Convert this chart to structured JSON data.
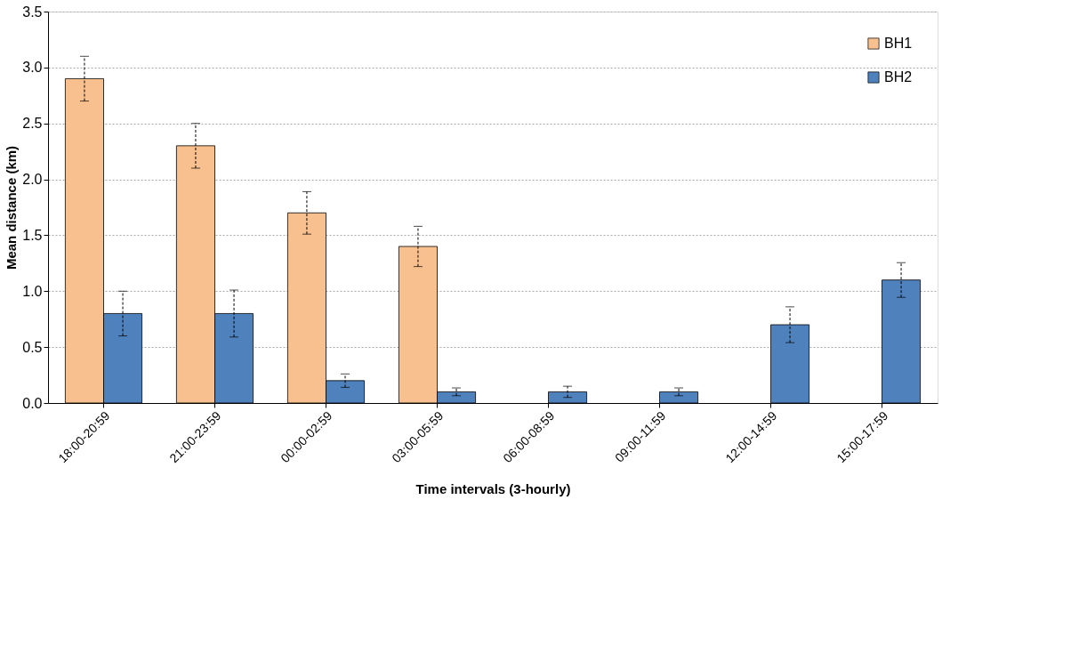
{
  "chart_data": {
    "type": "bar",
    "xlabel": "Time intervals (3-hourly)",
    "ylabel": "Mean distance (km)",
    "categories": [
      "18:00-20:59",
      "21:00-23:59",
      "00:00-02:59",
      "03:00-05:59",
      "06:00-08:59",
      "09:00-11:59",
      "12:00-14:59",
      "15:00-17:59"
    ],
    "series": [
      {
        "name": "BH1",
        "color": "#f9c08f",
        "values": [
          2.9,
          2.3,
          1.7,
          1.4,
          null,
          null,
          null,
          null
        ],
        "errors": [
          0.2,
          0.2,
          0.19,
          0.18,
          null,
          null,
          null,
          null
        ]
      },
      {
        "name": "BH2",
        "color": "#4f81bd",
        "values": [
          0.8,
          0.8,
          0.2,
          0.1,
          0.1,
          0.1,
          0.7,
          1.1
        ],
        "errors": [
          0.2,
          0.21,
          0.06,
          0.035,
          0.05,
          0.035,
          0.16,
          0.155
        ]
      }
    ],
    "ylim": [
      0,
      3.5
    ],
    "yticks": [
      {
        "value": 0,
        "label": "0.0"
      },
      0.5,
      {
        "value": 1,
        "label": "1.0"
      },
      1.5,
      {
        "value": 2,
        "label": "2.0"
      },
      2.5,
      {
        "value": 3,
        "label": "3.0"
      },
      3.5
    ],
    "grid": "y",
    "legend": "top right"
  }
}
